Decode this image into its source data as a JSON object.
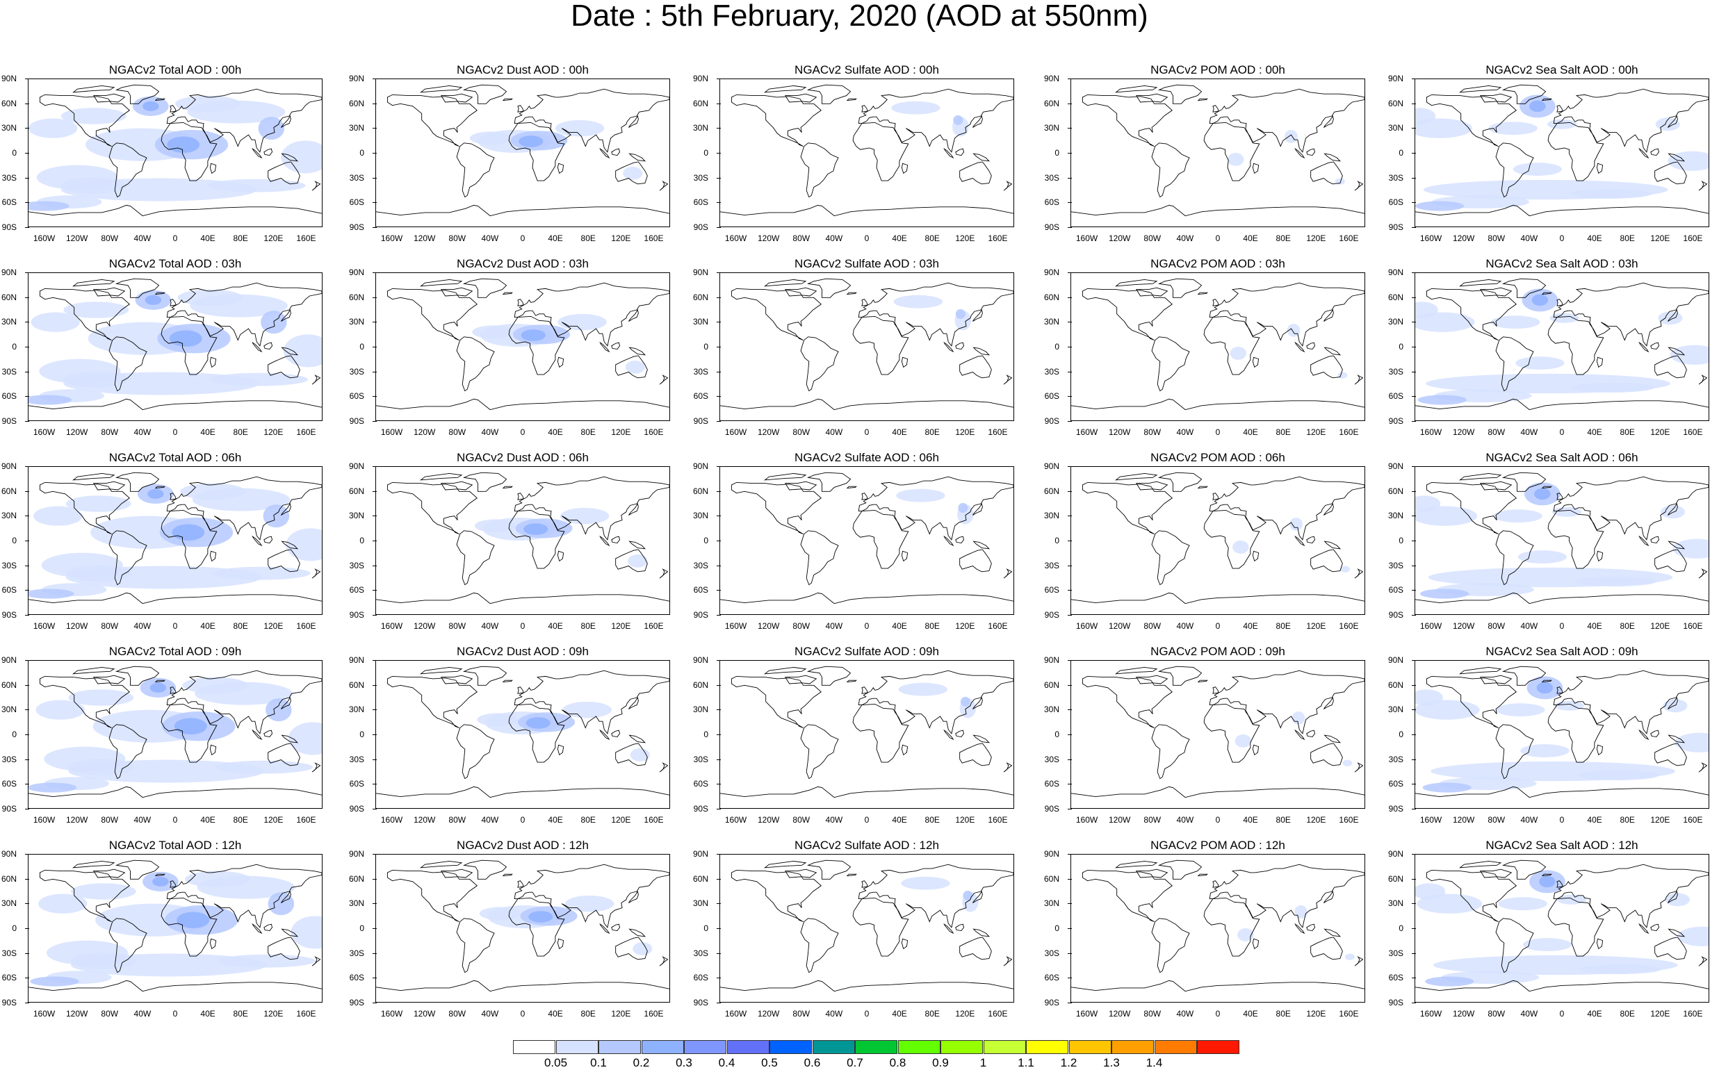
{
  "title": "Date : 5th February, 2020 (AOD at 550nm)",
  "lat_labels": [
    "90N",
    "60N",
    "30N",
    "0",
    "30S",
    "60S",
    "90S"
  ],
  "lon_labels": [
    "160W",
    "120W",
    "80W",
    "40W",
    "0",
    "40E",
    "80E",
    "120E",
    "160E"
  ],
  "panel_titles": [
    [
      "NGACv2 Total AOD : 00h",
      "NGACv2 Dust AOD : 00h",
      "NGACv2 Sulfate AOD : 00h",
      "NGACv2 POM AOD : 00h",
      "NGACv2 Sea Salt AOD : 00h"
    ],
    [
      "NGACv2 Total AOD : 03h",
      "NGACv2 Dust AOD : 03h",
      "NGACv2 Sulfate AOD : 03h",
      "NGACv2 POM AOD : 03h",
      "NGACv2 Sea Salt AOD : 03h"
    ],
    [
      "NGACv2 Total AOD : 06h",
      "NGACv2 Dust AOD : 06h",
      "NGACv2 Sulfate AOD : 06h",
      "NGACv2 POM AOD : 06h",
      "NGACv2 Sea Salt AOD : 06h"
    ],
    [
      "NGACv2 Total AOD : 09h",
      "NGACv2 Dust AOD : 09h",
      "NGACv2 Sulfate AOD : 09h",
      "NGACv2 POM AOD : 09h",
      "NGACv2 Sea Salt  AOD : 09h"
    ],
    [
      "NGACv2 Total AOD  : 12h",
      "NGACv2 Dust AOD : 12h",
      "NGACv2 Sulfate AOD : 12h",
      "NGACv2 POM  AOD : 12h",
      "NGACv2 Sea Salt  AOD : 12h"
    ]
  ],
  "colorbar": {
    "labels": [
      "0.05",
      "0.1",
      "0.2",
      "0.3",
      "0.4",
      "0.5",
      "0.6",
      "0.7",
      "0.8",
      "0.9",
      "1",
      "1.1",
      "1.2",
      "1.3",
      "1.4"
    ],
    "colors": [
      "#ffffff",
      "#d6e2ff",
      "#b5c9ff",
      "#8fb2ff",
      "#7f96ff",
      "#6370f8",
      "#0063ff",
      "#009696",
      "#00c633",
      "#63ff00",
      "#96ff00",
      "#c6ff33",
      "#ffff00",
      "#ffc600",
      "#ffa000",
      "#ff7c00",
      "#ff1900"
    ]
  },
  "aerosol_colors": {
    "light": "#d6e2ff",
    "medium": "#b5c9ff",
    "strong": "#8fb2ff",
    "heavy": "#7f96ff"
  }
}
